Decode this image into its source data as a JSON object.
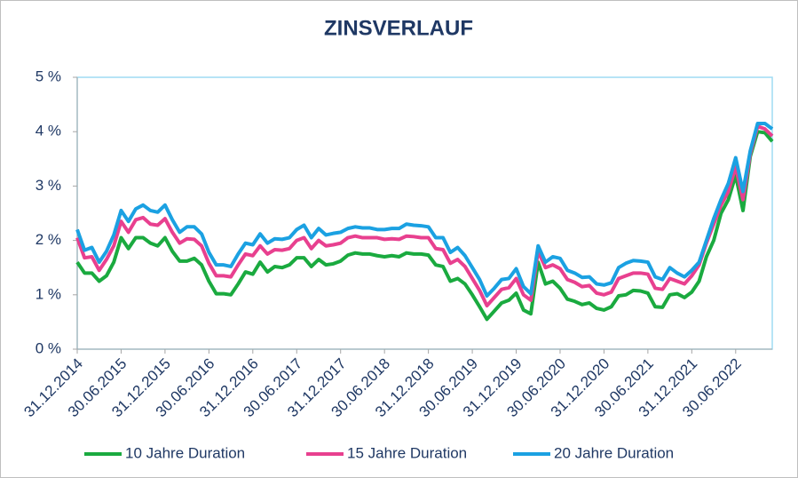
{
  "chart_data": {
    "type": "line",
    "title": "ZINSVERLAUF",
    "categories": [
      "31.12.2014",
      null,
      null,
      null,
      null,
      null,
      "30.06.2015",
      null,
      null,
      null,
      null,
      null,
      "31.12.2015",
      null,
      null,
      null,
      null,
      null,
      "30.06.2016",
      null,
      null,
      null,
      null,
      null,
      "31.12.2016",
      null,
      null,
      null,
      null,
      null,
      "30.06.2017",
      null,
      null,
      null,
      null,
      null,
      "31.12.2017",
      null,
      null,
      null,
      null,
      null,
      "30.06.2018",
      null,
      null,
      null,
      null,
      null,
      "31.12.2018",
      null,
      null,
      null,
      null,
      null,
      "30.06.2019",
      null,
      null,
      null,
      null,
      null,
      "31.12.2019",
      null,
      null,
      null,
      null,
      null,
      "30.06.2020",
      null,
      null,
      null,
      null,
      null,
      "31.12.2020",
      null,
      null,
      null,
      null,
      null,
      "30.06.2021",
      null,
      null,
      null,
      null,
      null,
      "31.12.2021",
      null,
      null,
      null,
      null,
      null,
      "30.06.2022",
      null,
      null,
      null,
      null,
      null
    ],
    "series": [
      {
        "name": "10 Jahre Duration",
        "color": "#1aaa3f",
        "values": [
          1.6,
          1.4,
          1.4,
          1.25,
          1.35,
          1.6,
          2.05,
          1.85,
          2.05,
          2.05,
          1.95,
          1.9,
          2.05,
          1.8,
          1.62,
          1.62,
          1.67,
          1.55,
          1.25,
          1.02,
          1.02,
          1.0,
          1.2,
          1.42,
          1.38,
          1.6,
          1.42,
          1.52,
          1.5,
          1.55,
          1.68,
          1.68,
          1.52,
          1.65,
          1.55,
          1.57,
          1.62,
          1.73,
          1.77,
          1.75,
          1.75,
          1.72,
          1.7,
          1.72,
          1.7,
          1.77,
          1.75,
          1.75,
          1.73,
          1.55,
          1.52,
          1.25,
          1.3,
          1.2,
          1.0,
          0.78,
          0.55,
          0.7,
          0.85,
          0.9,
          1.03,
          0.72,
          0.65,
          1.6,
          1.2,
          1.25,
          1.12,
          0.92,
          0.88,
          0.82,
          0.85,
          0.75,
          0.72,
          0.78,
          0.98,
          1.0,
          1.08,
          1.07,
          1.03,
          0.78,
          0.77,
          1.0,
          1.02,
          0.95,
          1.05,
          1.25,
          1.7,
          2.0,
          2.5,
          2.75,
          3.2,
          2.55,
          3.55,
          4.0,
          3.98,
          3.82
        ]
      },
      {
        "name": "15 Jahre Duration",
        "color": "#e8408f",
        "values": [
          2.05,
          1.68,
          1.7,
          1.45,
          1.65,
          1.9,
          2.35,
          2.15,
          2.38,
          2.42,
          2.3,
          2.28,
          2.4,
          2.15,
          1.95,
          2.03,
          2.02,
          1.9,
          1.58,
          1.35,
          1.35,
          1.33,
          1.55,
          1.75,
          1.72,
          1.9,
          1.75,
          1.83,
          1.82,
          1.85,
          2.0,
          2.05,
          1.85,
          2.0,
          1.9,
          1.92,
          1.95,
          2.05,
          2.08,
          2.05,
          2.05,
          2.05,
          2.02,
          2.03,
          2.02,
          2.08,
          2.07,
          2.05,
          2.05,
          1.85,
          1.83,
          1.58,
          1.65,
          1.52,
          1.3,
          1.08,
          0.8,
          0.95,
          1.1,
          1.13,
          1.3,
          1.0,
          0.9,
          1.8,
          1.5,
          1.55,
          1.48,
          1.28,
          1.23,
          1.15,
          1.17,
          1.03,
          1.0,
          1.05,
          1.3,
          1.35,
          1.4,
          1.4,
          1.38,
          1.12,
          1.1,
          1.3,
          1.25,
          1.2,
          1.35,
          1.55,
          1.95,
          2.3,
          2.65,
          2.9,
          3.35,
          2.75,
          3.6,
          4.1,
          4.05,
          3.92
        ]
      },
      {
        "name": "20 Jahre Duration",
        "color": "#1ba1e2",
        "values": [
          2.2,
          1.82,
          1.87,
          1.6,
          1.8,
          2.1,
          2.55,
          2.35,
          2.58,
          2.65,
          2.55,
          2.52,
          2.65,
          2.38,
          2.15,
          2.25,
          2.25,
          2.12,
          1.78,
          1.55,
          1.55,
          1.52,
          1.75,
          1.95,
          1.92,
          2.12,
          1.95,
          2.03,
          2.02,
          2.05,
          2.2,
          2.28,
          2.05,
          2.22,
          2.1,
          2.13,
          2.15,
          2.22,
          2.25,
          2.23,
          2.23,
          2.2,
          2.2,
          2.22,
          2.22,
          2.3,
          2.28,
          2.27,
          2.25,
          2.05,
          2.05,
          1.78,
          1.87,
          1.72,
          1.5,
          1.28,
          0.98,
          1.12,
          1.28,
          1.3,
          1.48,
          1.15,
          1.02,
          1.9,
          1.6,
          1.7,
          1.67,
          1.45,
          1.4,
          1.32,
          1.33,
          1.2,
          1.18,
          1.22,
          1.5,
          1.58,
          1.63,
          1.62,
          1.6,
          1.33,
          1.28,
          1.5,
          1.4,
          1.33,
          1.45,
          1.6,
          2.0,
          2.4,
          2.75,
          3.05,
          3.52,
          2.9,
          3.65,
          4.15,
          4.15,
          4.05
        ]
      }
    ],
    "ylim": [
      0,
      5
    ],
    "yticks": [
      {
        "value": 0,
        "label": "0 %"
      },
      {
        "value": 1,
        "label": "1 %"
      },
      {
        "value": 2,
        "label": "2 %"
      },
      {
        "value": 3,
        "label": "3 %"
      },
      {
        "value": 4,
        "label": "4 %"
      },
      {
        "value": 5,
        "label": "5 %"
      }
    ],
    "grid": false,
    "legend": "bottom"
  }
}
